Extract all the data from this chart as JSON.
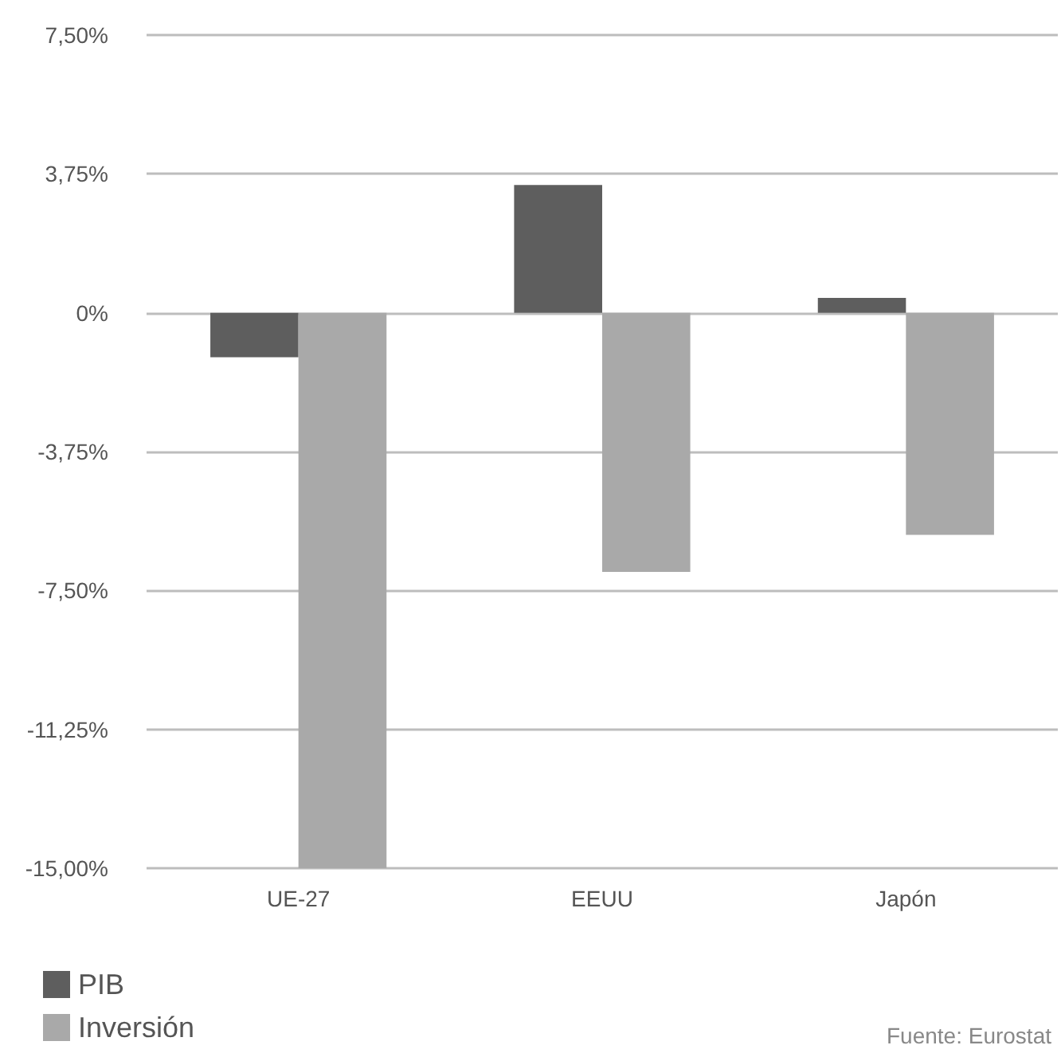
{
  "chart_data": {
    "type": "bar",
    "categories": [
      "UE-27",
      "EEUU",
      "Japón"
    ],
    "series": [
      {
        "name": "PIB",
        "color": "#5e5e5e",
        "values": [
          -1.2,
          3.45,
          0.4
        ]
      },
      {
        "name": "Inversión",
        "color": "#a9a9a9",
        "values": [
          -15,
          -7,
          -6
        ]
      }
    ],
    "ylim": [
      -15,
      7.5
    ],
    "yticks": [
      {
        "value": -15,
        "label": "-15,00%"
      },
      {
        "value": -11.25,
        "label": "-11,25%"
      },
      {
        "value": -7.5,
        "label": "-7,50%"
      },
      {
        "value": -3.75,
        "label": "-3,75%"
      },
      {
        "value": 0,
        "label": "0%"
      },
      {
        "value": 3.75,
        "label": "3,75%"
      },
      {
        "value": 7.5,
        "label": "7,50%"
      }
    ],
    "grid": "y",
    "legend": "bottom left",
    "annotations": [
      "Fuente: Eurostat"
    ]
  }
}
